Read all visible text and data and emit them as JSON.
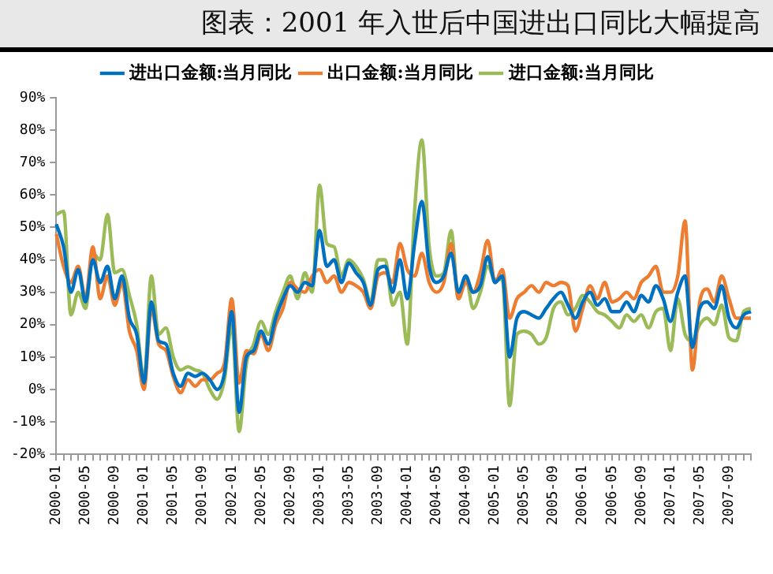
{
  "chart_data": {
    "type": "line",
    "title": "图表：2001 年入世后中国进出口同比大幅提高",
    "categories": [
      "2000-01",
      null,
      null,
      null,
      "2000-05",
      null,
      null,
      null,
      "2000-09",
      null,
      null,
      null,
      "2001-01",
      null,
      null,
      null,
      "2001-05",
      null,
      null,
      null,
      "2001-09",
      null,
      null,
      null,
      "2002-01",
      null,
      null,
      null,
      "2002-05",
      null,
      null,
      null,
      "2002-09",
      null,
      null,
      null,
      "2003-01",
      null,
      null,
      null,
      "2003-05",
      null,
      null,
      null,
      "2003-09",
      null,
      null,
      null,
      "2004-01",
      null,
      null,
      null,
      "2004-05",
      null,
      null,
      null,
      "2004-09",
      null,
      null,
      null,
      "2005-01",
      null,
      null,
      null,
      "2005-05",
      null,
      null,
      null,
      "2005-09",
      null,
      null,
      null,
      "2006-01",
      null,
      null,
      null,
      "2006-05",
      null,
      null,
      null,
      "2006-09",
      null,
      null,
      null,
      "2007-01",
      null,
      null,
      null,
      "2007-05",
      null,
      null,
      null,
      "2007-09",
      null,
      null,
      null
    ],
    "series": [
      {
        "name": "进出口金额:当月同比",
        "color": "#0070c0",
        "values": [
          51,
          44,
          30,
          37,
          27,
          40,
          33,
          38,
          28,
          35,
          22,
          17,
          2,
          27,
          15,
          14,
          5,
          1,
          5,
          4,
          5,
          3,
          0,
          5,
          24,
          -7,
          10,
          12,
          18,
          14,
          22,
          28,
          32,
          30,
          33,
          32,
          49,
          38,
          40,
          33,
          39,
          36,
          33,
          26,
          37,
          38,
          30,
          40,
          28,
          45,
          58,
          38,
          33,
          35,
          42,
          30,
          35,
          30,
          32,
          41,
          33,
          35,
          10,
          22,
          24,
          23,
          22,
          25,
          28,
          30,
          26,
          22,
          27,
          30,
          26,
          28,
          24,
          24,
          27,
          24,
          29,
          27,
          32,
          28,
          21,
          30,
          35,
          13,
          25,
          27,
          25,
          32,
          22,
          19,
          23,
          24
        ]
      },
      {
        "name": "出口金额:当月同比",
        "color": "#ed7d31",
        "values": [
          48,
          38,
          33,
          38,
          28,
          44,
          28,
          35,
          26,
          33,
          18,
          12,
          0,
          25,
          14,
          12,
          4,
          -1,
          3,
          1,
          3,
          3,
          5,
          8,
          28,
          2,
          12,
          11,
          17,
          12,
          20,
          25,
          33,
          31,
          30,
          35,
          37,
          33,
          35,
          30,
          33,
          32,
          30,
          25,
          35,
          36,
          33,
          45,
          37,
          35,
          42,
          33,
          30,
          33,
          45,
          28,
          33,
          30,
          36,
          46,
          33,
          37,
          22,
          28,
          30,
          32,
          30,
          33,
          32,
          33,
          32,
          18,
          25,
          32,
          28,
          33,
          27,
          28,
          30,
          28,
          33,
          35,
          38,
          30,
          30,
          35,
          52,
          6,
          27,
          31,
          27,
          35,
          28,
          22,
          22,
          22
        ]
      },
      {
        "name": "进口金额:当月同比",
        "color": "#9bbb59",
        "values": [
          54,
          55,
          23,
          30,
          25,
          42,
          40,
          54,
          36,
          37,
          29,
          20,
          3,
          35,
          17,
          19,
          10,
          6,
          7,
          6,
          5,
          0,
          -3,
          3,
          20,
          -13,
          8,
          14,
          21,
          17,
          24,
          30,
          35,
          28,
          36,
          30,
          63,
          45,
          44,
          35,
          40,
          38,
          34,
          27,
          40,
          40,
          26,
          30,
          14,
          55,
          77,
          44,
          35,
          36,
          49,
          28,
          35,
          25,
          30,
          38,
          34,
          34,
          -5,
          17,
          18,
          17,
          14,
          16,
          25,
          27,
          23,
          25,
          29,
          27,
          24,
          23,
          21,
          19,
          23,
          21,
          23,
          19,
          24,
          25,
          12,
          28,
          17,
          15,
          20,
          22,
          20,
          26,
          16,
          15,
          24,
          25
        ]
      }
    ],
    "ylim": [
      -20,
      90
    ],
    "yticks": [
      {
        "value": -20,
        "label": "-20%"
      },
      {
        "value": -10,
        "label": "-10%"
      },
      {
        "value": 0,
        "label": "0%"
      },
      {
        "value": 10,
        "label": "10%"
      },
      {
        "value": 20,
        "label": "20%"
      },
      {
        "value": 30,
        "label": "30%"
      },
      {
        "value": 40,
        "label": "40%"
      },
      {
        "value": 50,
        "label": "50%"
      },
      {
        "value": 60,
        "label": "60%"
      },
      {
        "value": 70,
        "label": "70%"
      },
      {
        "value": 80,
        "label": "80%"
      },
      {
        "value": 90,
        "label": "90%"
      }
    ],
    "legend": "top",
    "grid": false,
    "marker": "none",
    "line_style": "solid"
  }
}
